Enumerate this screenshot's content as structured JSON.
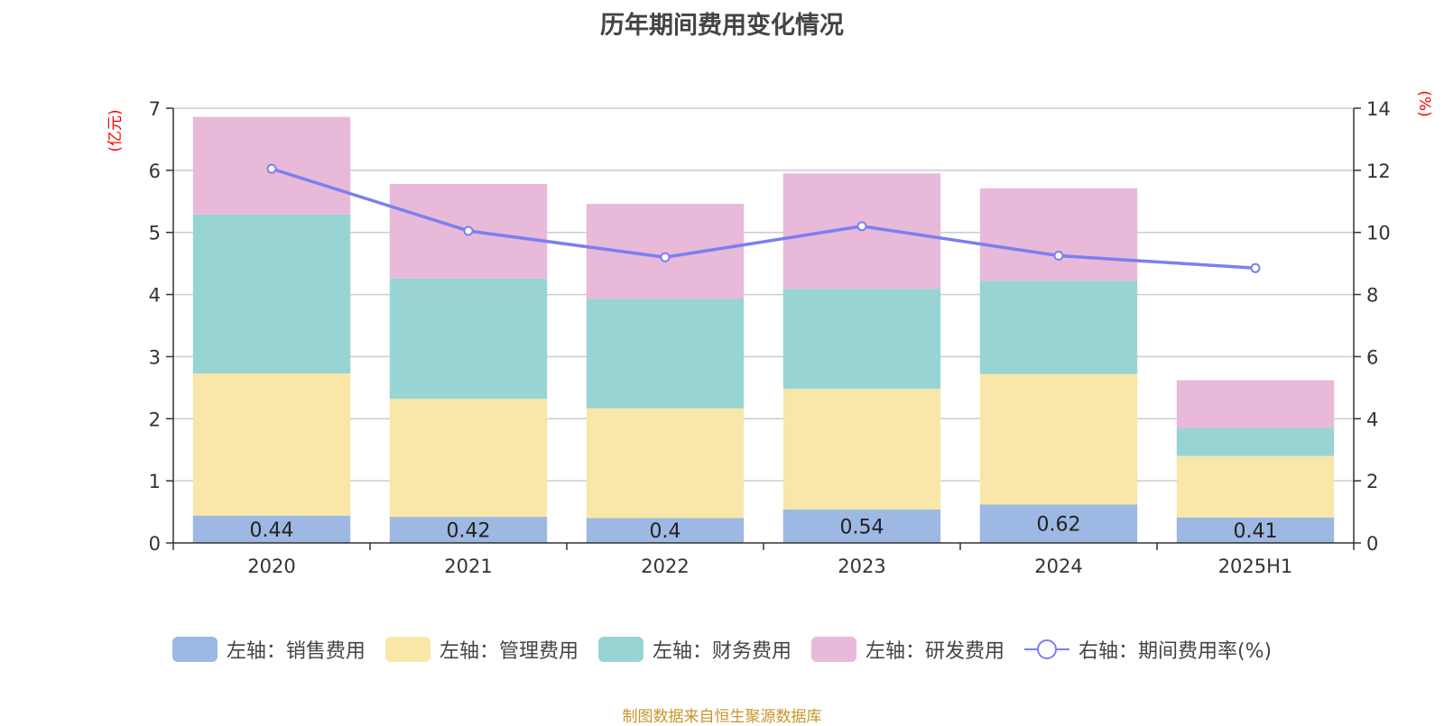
{
  "chart_data": {
    "type": "bar",
    "title": "历年期间费用变化情况",
    "categories": [
      "2020",
      "2021",
      "2022",
      "2023",
      "2024",
      "2025H1"
    ],
    "y_left": {
      "unit": "(亿元)",
      "ylim": [
        0,
        7
      ],
      "ticks": [
        "0",
        "1",
        "2",
        "3",
        "4",
        "5",
        "6",
        "7"
      ]
    },
    "y_right": {
      "unit": "(%)",
      "ylim": [
        0,
        14
      ],
      "ticks": [
        "0",
        "2",
        "4",
        "6",
        "8",
        "10",
        "12",
        "14"
      ]
    },
    "series": [
      {
        "name": "左轴：销售费用",
        "type": "bar",
        "color": "#9db8e2",
        "values": [
          0.44,
          0.42,
          0.4,
          0.54,
          0.62,
          0.41
        ],
        "labels": [
          "0.44",
          "0.42",
          "0.4",
          "0.54",
          "0.62",
          "0.41"
        ]
      },
      {
        "name": "左轴：管理费用",
        "type": "bar",
        "color": "#f8e7a8",
        "values": [
          2.29,
          1.9,
          1.77,
          1.94,
          2.1,
          0.99
        ]
      },
      {
        "name": "左轴：财务费用",
        "type": "bar",
        "color": "#98d4d4",
        "values": [
          2.56,
          1.94,
          1.76,
          1.61,
          1.5,
          0.45
        ]
      },
      {
        "name": "左轴：研发费用",
        "type": "bar",
        "color": "#e8b9d9",
        "values": [
          1.57,
          1.52,
          1.53,
          1.86,
          1.49,
          0.77
        ]
      },
      {
        "name": "右轴：期间费用率(%)",
        "type": "line",
        "axis": "right",
        "color": "#7b7ff0",
        "values": [
          12.05,
          10.05,
          9.2,
          10.2,
          9.25,
          8.85
        ]
      }
    ],
    "grid": true,
    "legend_position": "bottom"
  },
  "source_note": "制图数据来自恒生聚源数据库"
}
